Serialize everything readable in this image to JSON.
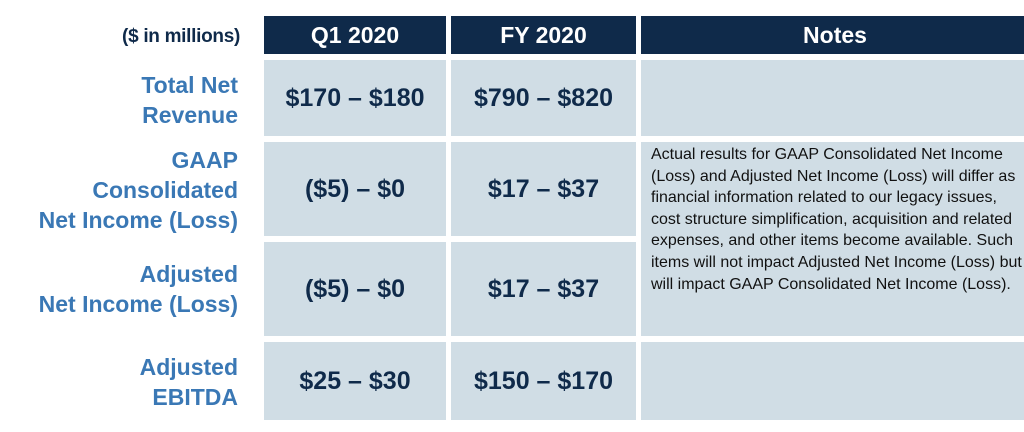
{
  "table": {
    "units_label": "($ in millions)",
    "headers": {
      "q1": "Q1 2020",
      "fy": "FY 2020",
      "notes": "Notes"
    },
    "rows": [
      {
        "label_lines": [
          "Total Net",
          "Revenue"
        ],
        "q1": "$170 – $180",
        "fy": "$790 – $820"
      },
      {
        "label_lines": [
          "GAAP",
          "Consolidated",
          "Net Income (Loss)"
        ],
        "q1": "($5) – $0",
        "fy": "$17 – $37"
      },
      {
        "label_lines": [
          "Adjusted",
          "Net Income (Loss)"
        ],
        "q1": "($5) – $0",
        "fy": "$17 – $37"
      },
      {
        "label_lines": [
          "Adjusted",
          "EBITDA"
        ],
        "q1": "$25 – $30",
        "fy": "$150 – $170"
      }
    ],
    "note": "Actual results for GAAP Consolidated Net Income (Loss) and Adjusted Net Income (Loss) will differ as financial information related to our legacy issues, cost structure simplification, acquisition and related expenses, and other items become available. Such items will not impact Adjusted Net Income (Loss) but will impact GAAP Consolidated Net Income (Loss)."
  },
  "colors": {
    "header_bg": "#0f2a4a",
    "cell_bg": "#d0dde5",
    "label_text": "#3a78b5",
    "value_text": "#0f2a4a"
  }
}
